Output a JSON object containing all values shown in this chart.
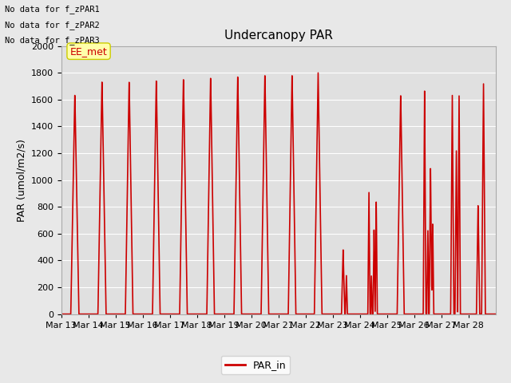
{
  "title": "Undercanopy PAR",
  "ylabel": "PAR (umol/m2/s)",
  "ylim": [
    0,
    2000
  ],
  "yticks": [
    0,
    200,
    400,
    600,
    800,
    1000,
    1200,
    1400,
    1600,
    1800,
    2000
  ],
  "line_color": "#cc0000",
  "line_width": 1.2,
  "fig_bg_color": "#e8e8e8",
  "plot_bg_color": "#e0e0e0",
  "no_data_labels": [
    "No data for f_zPAR1",
    "No data for f_zPAR2",
    "No data for f_zPAR3"
  ],
  "ee_met_label": "EE_met",
  "legend_label": "PAR_in",
  "x_tick_labels": [
    "Mar 13",
    "Mar 14",
    "Mar 15",
    "Mar 16",
    "Mar 17",
    "Mar 18",
    "Mar 19",
    "Mar 20",
    "Mar 21",
    "Mar 22",
    "Mar 23",
    "Mar 24",
    "Mar 25",
    "Mar 26",
    "Mar 27",
    "Mar 28"
  ],
  "title_fontsize": 11,
  "label_fontsize": 8,
  "ylabel_fontsize": 9
}
